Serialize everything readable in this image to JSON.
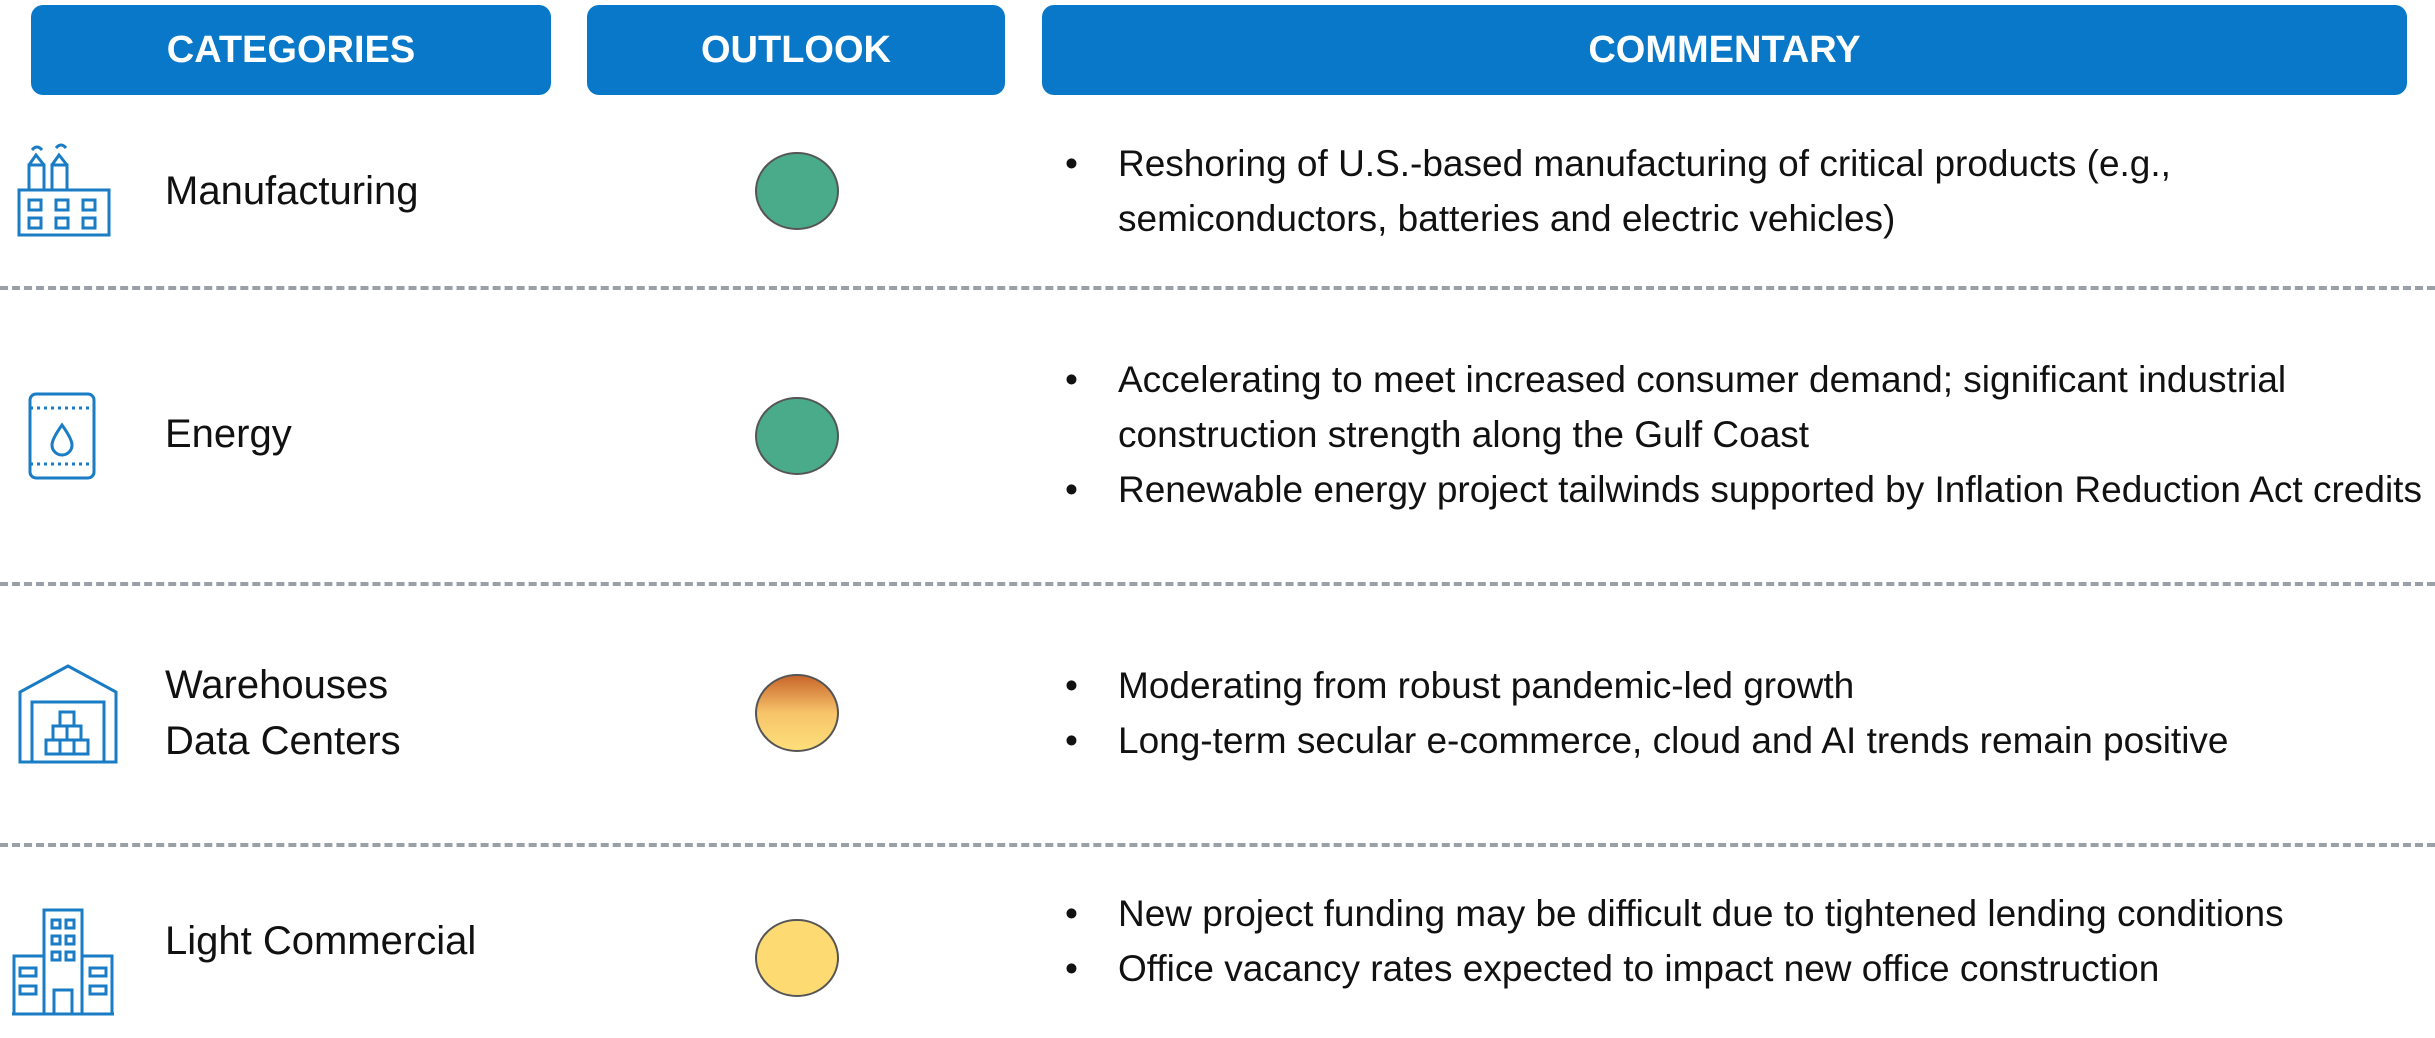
{
  "header": {
    "categories": "CATEGORIES",
    "outlook": "OUTLOOK",
    "commentary": "COMMENTARY"
  },
  "rows": [
    {
      "category": "Manufacturing",
      "commentary": [
        "Reshoring of U.S.-based manufacturing of critical products (e.g., semiconductors, batteries and electric vehicles)"
      ]
    },
    {
      "category": "Energy",
      "commentary": [
        "Accelerating to meet increased consumer demand; significant industrial construction strength along the Gulf Coast",
        "Renewable energy project tailwinds supported by Inflation Reduction Act credits"
      ]
    },
    {
      "category": "Warehouses\nData Centers",
      "commentary": [
        "Moderating from robust pandemic-led growth",
        "Long-term secular e-commerce, cloud and AI trends remain positive"
      ]
    },
    {
      "category": "Light Commercial",
      "commentary": [
        "New project funding may be difficult due to tightened lending conditions",
        "Office vacancy rates expected to impact new office construction"
      ]
    }
  ]
}
